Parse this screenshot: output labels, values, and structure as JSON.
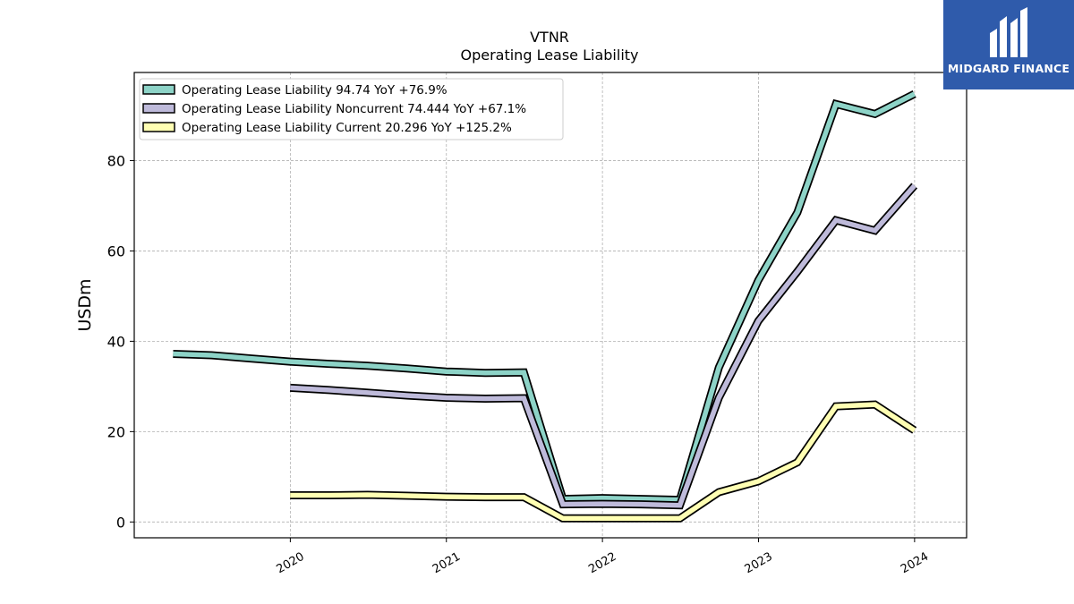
{
  "logo": {
    "text": "MIDGARD FINANCE"
  },
  "chart_data": {
    "type": "line",
    "title": "VTNR",
    "subtitle": "Operating Lease Liability",
    "ylabel": "USDm",
    "xlabel": "",
    "ylim": [
      -3.5,
      99.5
    ],
    "xlim": [
      "2019-01",
      "2024-05"
    ],
    "x_ticks": [
      "2020",
      "2021",
      "2022",
      "2023",
      "2024"
    ],
    "y_ticks": [
      0,
      20,
      40,
      60,
      80
    ],
    "grid": true,
    "legend_position": "upper-left",
    "series": [
      {
        "name": "Operating Lease Liability  94.74 YoY +76.9%",
        "color": "#8dd3c7",
        "points": [
          [
            "2019-03-31",
            37.2
          ],
          [
            "2019-06-30",
            36.9
          ],
          [
            "2019-09-30",
            36.2
          ],
          [
            "2019-12-31",
            35.5
          ],
          [
            "2020-03-31",
            35.0
          ],
          [
            "2020-06-30",
            34.6
          ],
          [
            "2020-09-30",
            34.0
          ],
          [
            "2020-12-31",
            33.3
          ],
          [
            "2021-03-31",
            33.0
          ],
          [
            "2021-06-30",
            33.1
          ],
          [
            "2021-09-30",
            5.1
          ],
          [
            "2021-12-31",
            5.3
          ],
          [
            "2022-03-31",
            5.1
          ],
          [
            "2022-06-30",
            4.9
          ],
          [
            "2022-09-30",
            34.2
          ],
          [
            "2022-12-31",
            53.5
          ],
          [
            "2023-03-31",
            68.5
          ],
          [
            "2023-06-30",
            92.5
          ],
          [
            "2023-09-30",
            90.3
          ],
          [
            "2023-12-31",
            94.74
          ]
        ]
      },
      {
        "name": "Operating Lease Liability Noncurrent  74.444 YoY +67.1%",
        "color": "#bebada",
        "points": [
          [
            "2019-12-31",
            29.7
          ],
          [
            "2020-03-31",
            29.2
          ],
          [
            "2020-06-30",
            28.6
          ],
          [
            "2020-09-30",
            28.0
          ],
          [
            "2020-12-31",
            27.5
          ],
          [
            "2021-03-31",
            27.3
          ],
          [
            "2021-06-30",
            27.4
          ],
          [
            "2021-09-30",
            3.9
          ],
          [
            "2021-12-31",
            4.0
          ],
          [
            "2022-03-31",
            3.9
          ],
          [
            "2022-06-30",
            3.7
          ],
          [
            "2022-09-30",
            27.5
          ],
          [
            "2022-12-31",
            44.5
          ],
          [
            "2023-03-31",
            55.4
          ],
          [
            "2023-06-30",
            66.8
          ],
          [
            "2023-09-30",
            64.5
          ],
          [
            "2023-12-31",
            74.444
          ]
        ]
      },
      {
        "name": "Operating Lease Liability Current  20.296 YoY +125.2%",
        "color": "#ffffb3",
        "points": [
          [
            "2019-12-31",
            5.9
          ],
          [
            "2020-03-31",
            5.9
          ],
          [
            "2020-06-30",
            6.0
          ],
          [
            "2020-09-30",
            5.8
          ],
          [
            "2020-12-31",
            5.6
          ],
          [
            "2021-03-31",
            5.5
          ],
          [
            "2021-06-30",
            5.5
          ],
          [
            "2021-09-30",
            0.8
          ],
          [
            "2021-12-31",
            0.8
          ],
          [
            "2022-03-31",
            0.8
          ],
          [
            "2022-06-30",
            0.8
          ],
          [
            "2022-09-30",
            6.6
          ],
          [
            "2022-12-31",
            9.0
          ],
          [
            "2023-03-31",
            13.2
          ],
          [
            "2023-06-30",
            25.6
          ],
          [
            "2023-09-30",
            26.0
          ],
          [
            "2023-12-31",
            20.296
          ]
        ]
      }
    ]
  }
}
